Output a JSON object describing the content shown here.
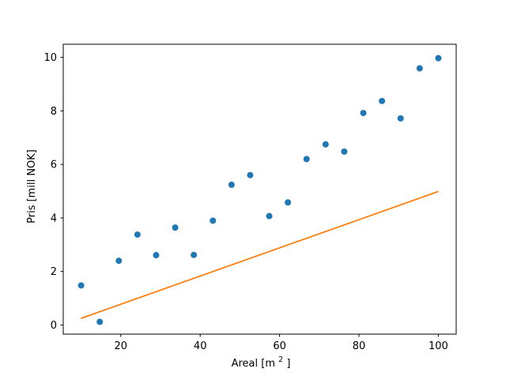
{
  "figure": {
    "background": "#ffffff",
    "title": ""
  },
  "chart_data": {
    "type": "scatter",
    "title": "",
    "xlabel": "Areal [m²]",
    "xlabel_parts": {
      "pre": "Areal [m",
      "sup": "2",
      "post": "]"
    },
    "ylabel": "Pris [mill NOK]",
    "xlim": [
      5.5,
      104.5
    ],
    "ylim": [
      -0.34,
      10.49
    ],
    "xticks": [
      20,
      40,
      60,
      80,
      100
    ],
    "yticks": [
      0,
      2,
      4,
      6,
      8,
      10
    ],
    "grid": false,
    "legend": "none",
    "axis_color": "#000000",
    "series": [
      {
        "name": "data-points",
        "type": "scatter",
        "color": "#1f77b4",
        "marker": "circle",
        "marker_radius": 4,
        "x": [
          10.0,
          14.7,
          19.5,
          24.2,
          28.9,
          33.7,
          38.4,
          43.2,
          47.9,
          52.6,
          57.4,
          62.1,
          66.8,
          71.6,
          76.3,
          81.1,
          85.8,
          90.5,
          95.3,
          100.0
        ],
        "y": [
          1.48,
          0.12,
          2.4,
          3.38,
          2.61,
          3.64,
          2.62,
          3.9,
          5.24,
          5.6,
          4.07,
          4.58,
          6.2,
          6.75,
          6.48,
          7.92,
          8.37,
          7.72,
          9.59,
          9.97
        ]
      },
      {
        "name": "trend-line",
        "type": "line",
        "color": "#ff7f0e",
        "line_width": 1.8,
        "x": [
          10.0,
          100.0
        ],
        "y": [
          0.25,
          4.99
        ]
      }
    ]
  }
}
